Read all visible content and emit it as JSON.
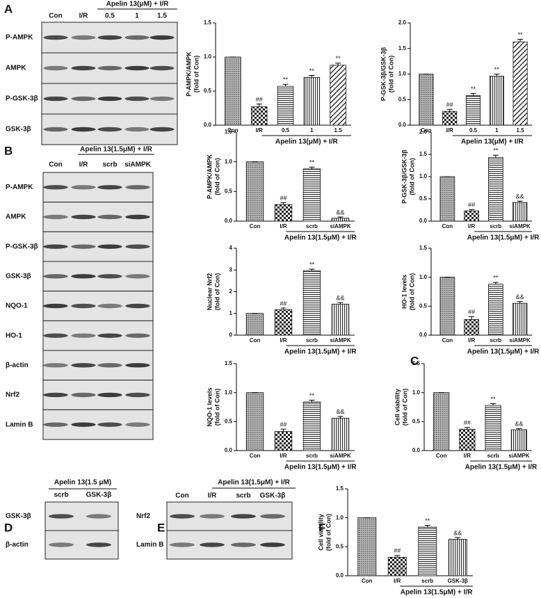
{
  "panel_labels": [
    "A",
    "B",
    "C",
    "D",
    "E",
    "F"
  ],
  "blots": [
    {
      "header": "Apelin 13(μM) + I/R",
      "lanes": [
        "Con",
        "I/R",
        "0.5",
        "1",
        "1.5"
      ],
      "rows": [
        "P-AMPK",
        "AMPK",
        "P-GSK-3β",
        "GSK-3β"
      ]
    },
    {
      "header": "Apelin 13(1.5μM) + I/R",
      "lanes": [
        "Con",
        "I/R",
        "scrb",
        "siAMPK"
      ],
      "rows": [
        "P-AMPK",
        "AMPK",
        "P-GSK-3β",
        "GSK-3β",
        "NQO-1",
        "HO-1",
        "β-actin",
        "Nrf2",
        "Lamin B"
      ]
    },
    {
      "header": "Apelin 13(1.5 μM)",
      "lanes": [
        "scrb",
        "GSK-3β"
      ],
      "rows": [
        "GSK-3β",
        "β-actin"
      ]
    },
    {
      "header": "Apelin 13(1.5μM) + I/R",
      "lanes": [
        "Con",
        "I/R",
        "scrb",
        "GSK-3β"
      ],
      "rows": [
        "Nrf2",
        "Lamin B"
      ]
    }
  ],
  "chart_data": [
    {
      "type": "bar",
      "ylabel": [
        "P-AMPK/AMPK",
        "(fold of Con)"
      ],
      "group_label": "Apelin 13(μM) + I/R",
      "categories": [
        "Con",
        "I/R",
        "0.5",
        "1",
        "1.5"
      ],
      "values": [
        1,
        0.27,
        0.57,
        0.7,
        0.88
      ],
      "errors": [
        0,
        0.04,
        0.03,
        0.03,
        0.03
      ],
      "annotations": [
        null,
        "##",
        "**",
        "**",
        "**"
      ],
      "ylim": [
        0,
        1.5
      ],
      "yticks": [
        {
          "value": 0,
          "label": "0.0"
        },
        0.5,
        {
          "value": 1,
          "label": "1.0"
        },
        1.5
      ]
    },
    {
      "type": "bar",
      "ylabel": [
        "P-GSK-3β/GSK-3β",
        "(fold of Con)"
      ],
      "group_label": "Apelin 13(μM) + I/R",
      "categories": [
        "Con",
        "I/R",
        "0.5",
        "1",
        "1.5"
      ],
      "values": [
        1,
        0.27,
        0.58,
        0.96,
        1.63
      ],
      "errors": [
        0,
        0.04,
        0.04,
        0.04,
        0.05
      ],
      "annotations": [
        null,
        "##",
        "**",
        "**",
        "**"
      ],
      "ylim": [
        0,
        2
      ],
      "yticks": [
        {
          "value": 0,
          "label": "0.0"
        },
        0.5,
        {
          "value": 1,
          "label": "1.0"
        },
        1.5,
        {
          "value": 2,
          "label": "2.0"
        }
      ]
    },
    {
      "type": "bar",
      "ylabel": [
        "P-AMPK/AMPK",
        "(fold of Con)"
      ],
      "group_label": "Apelin 13(1.5μM) + I/R",
      "categories": [
        "Con",
        "I/R",
        "scrb",
        "siAMPK"
      ],
      "values": [
        1,
        0.28,
        0.88,
        0.05
      ],
      "errors": [
        0,
        0.03,
        0.03,
        0.02
      ],
      "annotations": [
        null,
        "##",
        "**",
        "&&"
      ],
      "ylim": [
        0,
        1.5
      ],
      "yticks": [
        {
          "value": 0,
          "label": "0.0"
        },
        0.5,
        {
          "value": 1,
          "label": "1.0"
        },
        1.5
      ]
    },
    {
      "type": "bar",
      "ylabel": [
        "P-GSK-3β/GSK-3β",
        "(fold of Con)"
      ],
      "group_label": "Apelin 13(1.5μM) + I/R",
      "categories": [
        "Con",
        "I/R",
        "scrb",
        "siAMPK"
      ],
      "values": [
        1,
        0.23,
        1.43,
        0.42
      ],
      "errors": [
        0,
        0.03,
        0.05,
        0.03
      ],
      "annotations": [
        null,
        "##",
        "**",
        "&&"
      ],
      "ylim": [
        0,
        2
      ],
      "yticks": [
        {
          "value": 0,
          "label": "0.0"
        },
        0.5,
        {
          "value": 1,
          "label": "1.0"
        },
        1.5,
        {
          "value": 2,
          "label": "2.0"
        }
      ]
    },
    {
      "type": "bar",
      "ylabel": [
        "Nuclear Nrf2",
        "(fold of Con)"
      ],
      "group_label": "Apelin 13(1.5μM) + I/R",
      "categories": [
        "Con",
        "I/R",
        "scrb",
        "siAMPK"
      ],
      "values": [
        1,
        1.17,
        2.97,
        1.43
      ],
      "errors": [
        0,
        0.08,
        0.07,
        0.07
      ],
      "annotations": [
        null,
        "##",
        "**",
        "&&"
      ],
      "ylim": [
        0,
        4
      ],
      "yticks": [
        0,
        1,
        2,
        3,
        4
      ]
    },
    {
      "type": "bar",
      "ylabel": [
        "HO-1 levels",
        "(fold of Con)"
      ],
      "group_label": "Apelin 13(1.5μM) + I/R",
      "categories": [
        "Con",
        "I/R",
        "scrb",
        "siAMPK"
      ],
      "values": [
        1,
        0.27,
        0.88,
        0.55
      ],
      "errors": [
        0,
        0.05,
        0.03,
        0.03
      ],
      "annotations": [
        null,
        "##",
        "**",
        "&&"
      ],
      "ylim": [
        0,
        1.5
      ],
      "yticks": [
        {
          "value": 0,
          "label": "0.0"
        },
        0.5,
        {
          "value": 1,
          "label": "1.0"
        },
        1.5
      ]
    },
    {
      "type": "bar",
      "ylabel": [
        "NQO-1 levels",
        "(fold of Con)"
      ],
      "group_label": "Apelin 13(1.5μM) + I/R",
      "categories": [
        "Con",
        "I/R",
        "scrb",
        "siAMPK"
      ],
      "values": [
        1,
        0.33,
        0.84,
        0.56
      ],
      "errors": [
        0,
        0.04,
        0.03,
        0.03
      ],
      "annotations": [
        null,
        "##",
        "**",
        "&&"
      ],
      "ylim": [
        0,
        1.5
      ],
      "yticks": [
        {
          "value": 0,
          "label": "0.0"
        },
        0.5,
        {
          "value": 1,
          "label": "1.0"
        },
        1.5
      ]
    },
    {
      "type": "bar",
      "ylabel": [
        "Cell viability",
        "(fold of Con)"
      ],
      "group_label": "Apelin 13(1.5μM) + I/R",
      "categories": [
        "Con",
        "I/R",
        "scrb",
        "siAMPK"
      ],
      "values": [
        1,
        0.37,
        0.78,
        0.36
      ],
      "errors": [
        0,
        0.03,
        0.03,
        0.02
      ],
      "annotations": [
        null,
        "##",
        "**",
        "&&"
      ],
      "ylim": [
        0,
        1.5
      ],
      "yticks": [
        {
          "value": 0,
          "label": "0.0"
        },
        0.5,
        {
          "value": 1,
          "label": "1.0"
        },
        1.5
      ]
    },
    {
      "type": "bar",
      "ylabel": [
        "Cell viability",
        "(fold of Con)"
      ],
      "group_label": "Apelin 13(1.5μM) + I/R",
      "categories": [
        "Con",
        "I/R",
        "scrb",
        "GSK-3β"
      ],
      "values": [
        1,
        0.32,
        0.84,
        0.63
      ],
      "errors": [
        0,
        0.03,
        0.03,
        0.03
      ],
      "annotations": [
        null,
        "##",
        "**",
        "&&"
      ],
      "ylim": [
        0,
        1.5
      ],
      "yticks": [
        {
          "value": 0,
          "label": "0.0"
        },
        0.5,
        {
          "value": 1,
          "label": "1.0"
        },
        1.5
      ]
    }
  ]
}
